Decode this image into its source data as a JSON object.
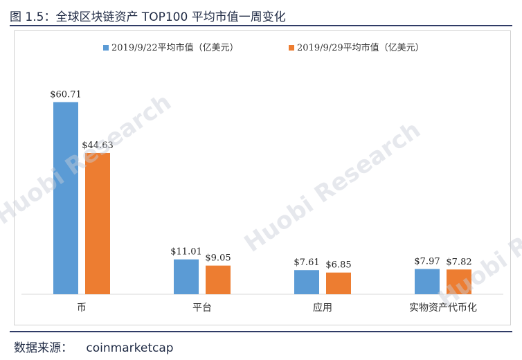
{
  "figure": {
    "title": "图 1.5：全球区块链资产 TOP100 平均市值一周变化",
    "source_label": "数据来源：",
    "source_value": "coinmarketcap",
    "watermark": "Huobi Research"
  },
  "chart_data": {
    "type": "bar",
    "categories": [
      "币",
      "平台",
      "应用",
      "实物资产代币化"
    ],
    "series": [
      {
        "name": "2019/9/22平均市值（亿美元）",
        "values": [
          60.71,
          11.01,
          7.61,
          7.97
        ],
        "labels": [
          "$60.71",
          "$11.01",
          "$7.61",
          "$7.97"
        ],
        "color": "#5b9bd5"
      },
      {
        "name": "2019/9/29平均市值（亿美元）",
        "values": [
          44.63,
          9.05,
          6.85,
          7.82
        ],
        "labels": [
          "$44.63",
          "$9.05",
          "$6.85",
          "$7.82"
        ],
        "color": "#ed7d31"
      }
    ],
    "ylim": [
      0,
      70
    ],
    "grid": false,
    "legend_position": "top-center"
  }
}
